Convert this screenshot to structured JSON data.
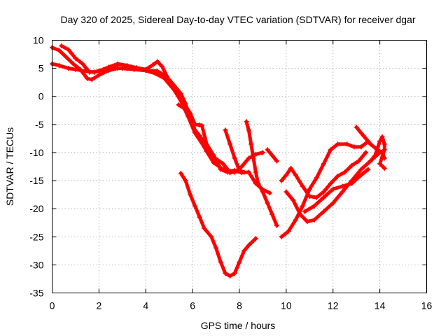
{
  "chart_data": {
    "type": "scatter",
    "title": "Day 320 of 2025, Sidereal Day-to-day VTEC variation (SDTVAR) for receiver dgar",
    "xlabel": "GPS time / hours",
    "ylabel": "SDTVAR / TECUs",
    "xlim": [
      0,
      16
    ],
    "ylim": [
      -35,
      10
    ],
    "xticks": [
      "0",
      "2",
      "4",
      "6",
      "8",
      "10",
      "12",
      "14",
      "16"
    ],
    "yticks": [
      "10",
      "5",
      "0",
      "-5",
      "-10",
      "-15",
      "-20",
      "-25",
      "-30",
      "-35"
    ],
    "grid": true,
    "legend": "none",
    "marker": "plus",
    "color": "#ff0000",
    "series": [
      {
        "points": [
          [
            0.0,
            8.7
          ],
          [
            0.3,
            8.2
          ],
          [
            0.6,
            7.0
          ],
          [
            0.9,
            5.8
          ],
          [
            1.2,
            4.8
          ],
          [
            1.5,
            3.2
          ],
          [
            1.7,
            3.0
          ],
          [
            2.0,
            3.8
          ],
          [
            2.4,
            4.6
          ],
          [
            2.8,
            5.0
          ],
          [
            3.2,
            5.0
          ],
          [
            3.6,
            4.9
          ],
          [
            4.0,
            4.6
          ],
          [
            4.4,
            4.1
          ],
          [
            4.8,
            3.2
          ],
          [
            5.2,
            1.2
          ],
          [
            5.5,
            -0.8
          ],
          [
            5.8,
            -3.5
          ],
          [
            6.1,
            -6.5
          ],
          [
            6.5,
            -9.0
          ],
          [
            6.9,
            -11.0
          ],
          [
            7.2,
            -12.8
          ],
          [
            7.5,
            -13.3
          ],
          [
            7.8,
            -13.2
          ],
          [
            8.1,
            -13.6
          ],
          [
            8.4,
            -13.5
          ],
          [
            8.7,
            -15.5
          ],
          [
            9.0,
            -16.6
          ],
          [
            9.3,
            -17.2
          ]
        ]
      },
      {
        "points": [
          [
            0.4,
            9.0
          ],
          [
            0.7,
            8.3
          ],
          [
            1.0,
            6.8
          ],
          [
            1.3,
            5.8
          ],
          [
            1.6,
            4.3
          ],
          [
            2.0,
            4.5
          ],
          [
            2.4,
            5.2
          ],
          [
            2.8,
            5.8
          ],
          [
            3.2,
            5.5
          ],
          [
            3.6,
            5.1
          ],
          [
            4.0,
            4.8
          ],
          [
            4.3,
            5.6
          ],
          [
            4.5,
            6.2
          ],
          [
            4.7,
            5.3
          ],
          [
            5.0,
            2.8
          ],
          [
            5.3,
            0.8
          ],
          [
            5.6,
            -1.0
          ],
          [
            5.9,
            -3.0
          ],
          [
            6.1,
            -5.0
          ],
          [
            6.3,
            -5.1
          ],
          [
            6.4,
            -5.2
          ],
          [
            6.6,
            -8.5
          ],
          [
            6.9,
            -10.5
          ],
          [
            7.2,
            -13.0
          ],
          [
            7.5,
            -13.5
          ],
          [
            7.8,
            -13.5
          ],
          [
            8.1,
            -12.5
          ],
          [
            8.4,
            -11.0
          ],
          [
            8.7,
            -10.3
          ],
          [
            9.0,
            -10.0
          ]
        ]
      },
      {
        "points": [
          [
            0.0,
            5.8
          ],
          [
            0.3,
            5.5
          ],
          [
            0.7,
            5.0
          ],
          [
            1.0,
            4.8
          ],
          [
            1.4,
            4.5
          ],
          [
            1.8,
            4.3
          ],
          [
            2.2,
            4.8
          ],
          [
            2.6,
            5.2
          ],
          [
            3.0,
            5.0
          ],
          [
            3.5,
            4.8
          ],
          [
            4.0,
            4.6
          ],
          [
            4.5,
            4.5
          ],
          [
            4.9,
            3.5
          ],
          [
            5.2,
            2.0
          ],
          [
            5.5,
            0.5
          ],
          [
            5.7,
            -1.3
          ],
          [
            5.9,
            -4.0
          ],
          [
            6.1,
            -6.2
          ],
          [
            6.3,
            -7.5
          ],
          [
            6.6,
            -9.8
          ],
          [
            6.9,
            -11.8
          ],
          [
            7.3,
            -13.0
          ],
          [
            7.6,
            -13.6
          ],
          [
            7.9,
            -13.3
          ]
        ]
      },
      {
        "points": [
          [
            5.4,
            -1.5
          ],
          [
            5.6,
            -2.0
          ],
          [
            5.9,
            -3.5
          ],
          [
            6.1,
            -6.0
          ],
          [
            6.3,
            -7.0
          ],
          [
            6.6,
            -8.8
          ],
          [
            6.9,
            -10.8
          ],
          [
            7.3,
            -12.0
          ],
          [
            7.6,
            -13.5
          ],
          [
            8.0,
            -13.3
          ]
        ]
      },
      {
        "points": [
          [
            7.4,
            -6.0
          ],
          [
            7.6,
            -8.5
          ],
          [
            7.8,
            -11.0
          ],
          [
            8.0,
            -13.2
          ],
          [
            8.2,
            -13.5
          ]
        ]
      },
      {
        "points": [
          [
            8.3,
            -4.5
          ],
          [
            8.4,
            -6.0
          ],
          [
            8.5,
            -8.5
          ],
          [
            8.6,
            -11.0
          ],
          [
            8.7,
            -13.5
          ],
          [
            8.8,
            -15.5
          ],
          [
            9.0,
            -17.0
          ],
          [
            9.2,
            -19.0
          ],
          [
            9.4,
            -21.0
          ],
          [
            9.6,
            -23.0
          ]
        ]
      },
      {
        "points": [
          [
            9.2,
            -9.5
          ],
          [
            9.4,
            -10.5
          ],
          [
            9.6,
            -11.5
          ]
        ]
      },
      {
        "points": [
          [
            5.5,
            -13.7
          ],
          [
            5.7,
            -15.0
          ],
          [
            5.9,
            -17.5
          ],
          [
            6.1,
            -19.5
          ],
          [
            6.3,
            -21.5
          ],
          [
            6.5,
            -23.5
          ],
          [
            6.8,
            -25.0
          ],
          [
            7.0,
            -27.0
          ],
          [
            7.2,
            -29.5
          ],
          [
            7.4,
            -31.5
          ],
          [
            7.6,
            -32.0
          ],
          [
            7.8,
            -31.5
          ],
          [
            8.0,
            -29.5
          ],
          [
            8.2,
            -27.5
          ],
          [
            8.4,
            -26.5
          ],
          [
            8.7,
            -25.3
          ]
        ]
      },
      {
        "points": [
          [
            9.8,
            -15.0
          ],
          [
            10.0,
            -14.0
          ],
          [
            10.2,
            -12.8
          ],
          [
            10.4,
            -14.0
          ],
          [
            10.7,
            -16.0
          ],
          [
            11.0,
            -17.8
          ],
          [
            11.3,
            -18.0
          ],
          [
            11.6,
            -17.0
          ],
          [
            11.9,
            -15.5
          ],
          [
            12.2,
            -14.2
          ],
          [
            12.5,
            -13.5
          ],
          [
            12.8,
            -12.3
          ],
          [
            13.1,
            -11.5
          ],
          [
            13.4,
            -10.0
          ]
        ]
      },
      {
        "points": [
          [
            9.8,
            -25.0
          ],
          [
            10.1,
            -24.0
          ],
          [
            10.4,
            -22.0
          ],
          [
            10.7,
            -19.5
          ],
          [
            11.0,
            -16.5
          ],
          [
            11.3,
            -14.5
          ],
          [
            11.6,
            -12.0
          ],
          [
            11.9,
            -9.5
          ],
          [
            12.2,
            -8.5
          ],
          [
            12.6,
            -8.5
          ],
          [
            12.9,
            -9.0
          ],
          [
            13.2,
            -9.0
          ],
          [
            13.5,
            -8.0
          ]
        ]
      },
      {
        "points": [
          [
            10.0,
            -17.0
          ],
          [
            10.3,
            -18.5
          ],
          [
            10.6,
            -21.0
          ],
          [
            10.9,
            -22.3
          ],
          [
            11.2,
            -22.0
          ],
          [
            11.6,
            -20.5
          ],
          [
            12.0,
            -19.0
          ],
          [
            12.4,
            -17.0
          ],
          [
            12.8,
            -15.0
          ],
          [
            13.2,
            -13.0
          ],
          [
            13.6,
            -11.5
          ],
          [
            14.0,
            -10.0
          ]
        ]
      },
      {
        "points": [
          [
            10.8,
            -20.5
          ],
          [
            11.2,
            -19.5
          ],
          [
            11.6,
            -18.0
          ],
          [
            12.0,
            -16.5
          ],
          [
            12.4,
            -16.0
          ],
          [
            12.8,
            -15.5
          ],
          [
            13.2,
            -14.0
          ],
          [
            13.5,
            -13.0
          ]
        ]
      },
      {
        "points": [
          [
            13.0,
            -5.5
          ],
          [
            13.3,
            -7.0
          ],
          [
            13.6,
            -8.5
          ],
          [
            13.9,
            -9.5
          ],
          [
            14.1,
            -10.0
          ],
          [
            14.2,
            -11.0
          ]
        ]
      },
      {
        "points": [
          [
            13.6,
            -11.5
          ],
          [
            13.8,
            -10.5
          ],
          [
            14.0,
            -8.0
          ],
          [
            14.1,
            -7.2
          ],
          [
            14.2,
            -8.5
          ],
          [
            14.2,
            -9.5
          ],
          [
            14.0,
            -12.0
          ],
          [
            14.2,
            -12.8
          ]
        ]
      }
    ]
  }
}
